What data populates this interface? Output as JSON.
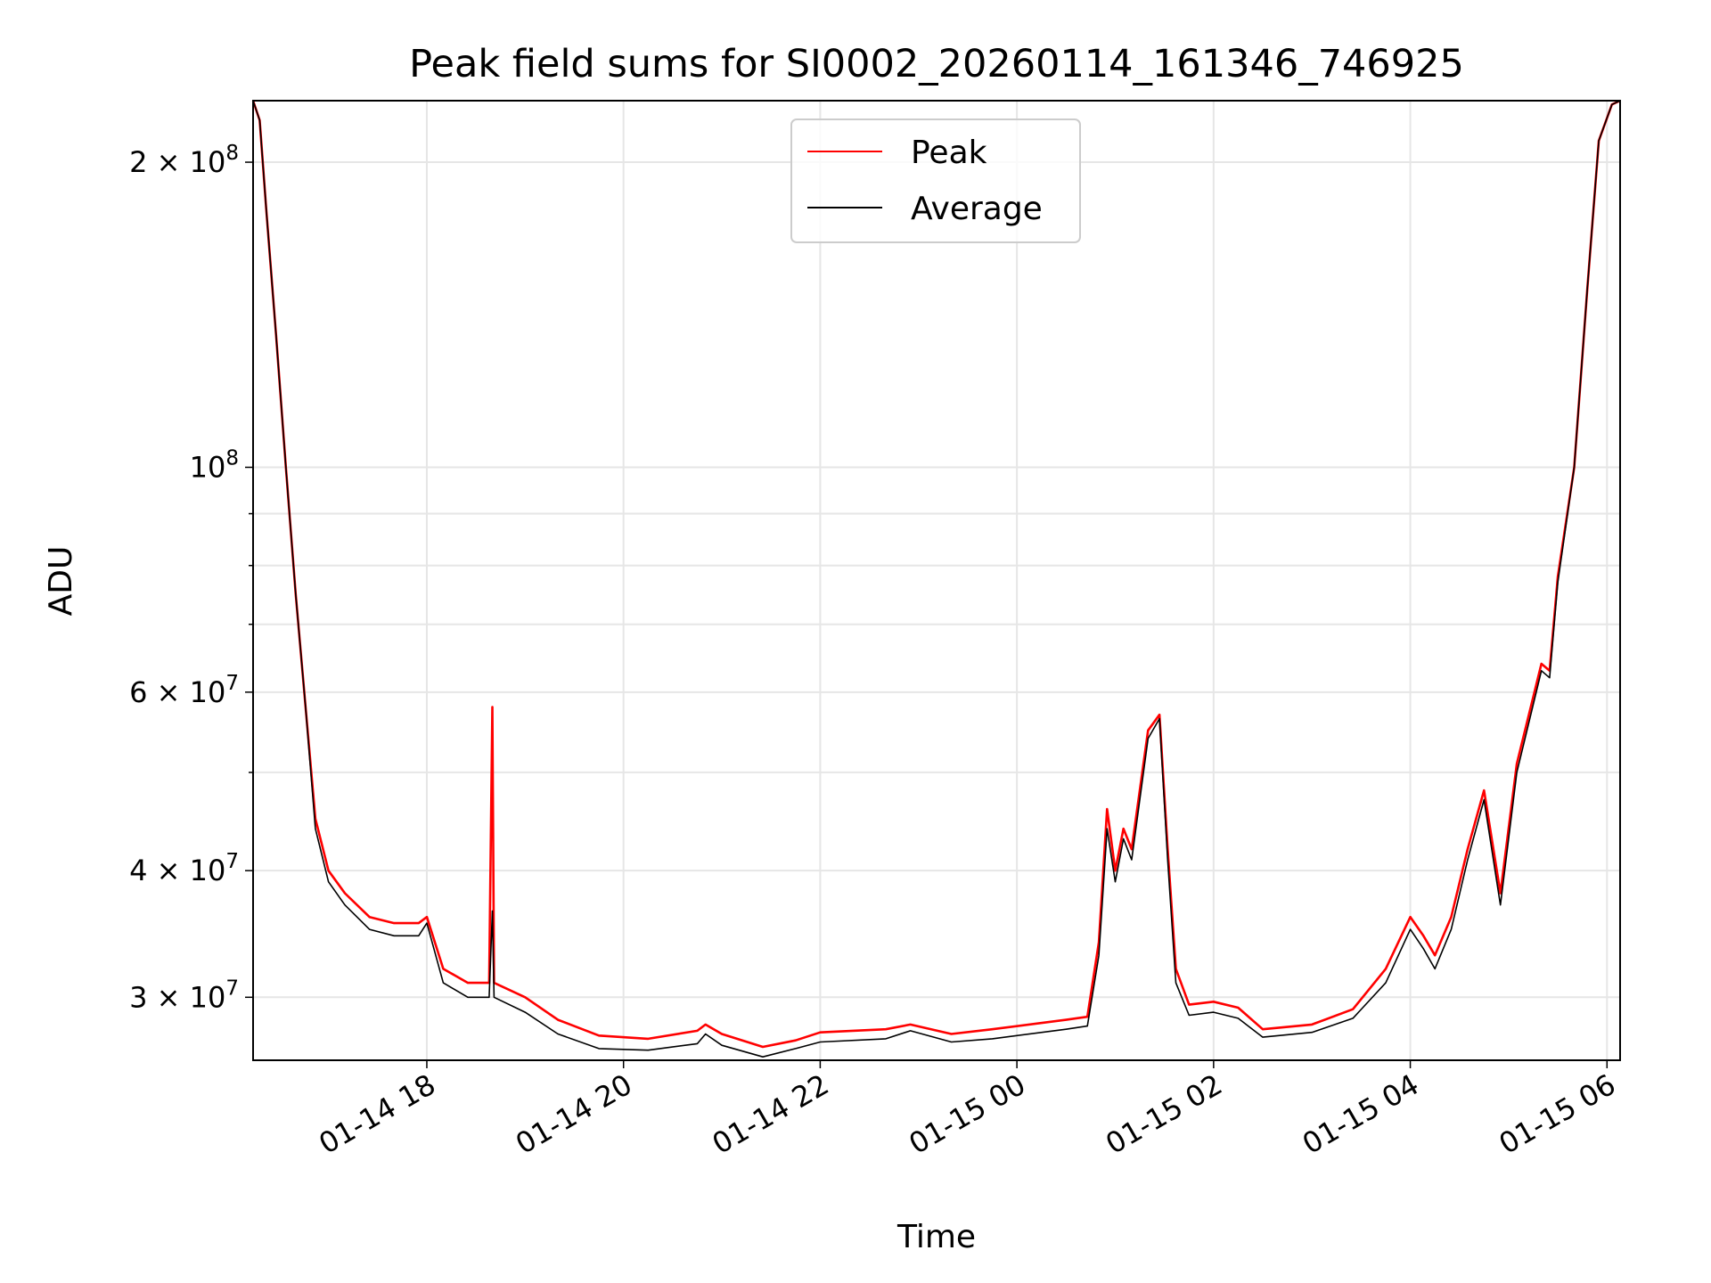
{
  "chart_data": {
    "type": "line",
    "title": "Peak field sums for SI0002_20260114_161346_746925",
    "xlabel": "Time",
    "ylabel": "ADU",
    "yscale": "log",
    "ylim": [
      26000000,
      230000000
    ],
    "xlim": [
      "2026-01-14 16:14",
      "2026-01-15 06:08"
    ],
    "grid": true,
    "legend": "upper center",
    "x_ticks": [
      {
        "value": "2026-01-14 18:00",
        "label": "01-14 18"
      },
      {
        "value": "2026-01-14 20:00",
        "label": "01-14 20"
      },
      {
        "value": "2026-01-14 22:00",
        "label": "01-14 22"
      },
      {
        "value": "2026-01-15 00:00",
        "label": "01-15 00"
      },
      {
        "value": "2026-01-15 02:00",
        "label": "01-15 02"
      },
      {
        "value": "2026-01-15 04:00",
        "label": "01-15 04"
      },
      {
        "value": "2026-01-15 06:00",
        "label": "01-15 06"
      }
    ],
    "y_ticks": [
      {
        "value": 200000000,
        "base": "2 × 10",
        "exp": "8"
      },
      {
        "value": 100000000,
        "base": "10",
        "exp": "8"
      },
      {
        "value": 60000000,
        "base": "6 × 10",
        "exp": "7"
      },
      {
        "value": 40000000,
        "base": "4 × 10",
        "exp": "7"
      },
      {
        "value": 30000000,
        "base": "3 × 10",
        "exp": "7"
      }
    ],
    "y_minor_ticks": [
      90000000,
      80000000,
      70000000,
      50000000
    ],
    "series": [
      {
        "name": "Peak",
        "color": "#ff0000",
        "points": [
          [
            "2026-01-14 16:14",
            230000000
          ],
          [
            "2026-01-14 16:18",
            220000000
          ],
          [
            "2026-01-14 16:22",
            180000000
          ],
          [
            "2026-01-14 16:28",
            135000000
          ],
          [
            "2026-01-14 16:34",
            100000000
          ],
          [
            "2026-01-14 16:40",
            75000000
          ],
          [
            "2026-01-14 16:46",
            58000000
          ],
          [
            "2026-01-14 16:52",
            45000000
          ],
          [
            "2026-01-14 17:00",
            40000000
          ],
          [
            "2026-01-14 17:10",
            38000000
          ],
          [
            "2026-01-14 17:25",
            36000000
          ],
          [
            "2026-01-14 17:40",
            35500000
          ],
          [
            "2026-01-14 17:55",
            35500000
          ],
          [
            "2026-01-14 18:00",
            36000000
          ],
          [
            "2026-01-14 18:10",
            32000000
          ],
          [
            "2026-01-14 18:25",
            31000000
          ],
          [
            "2026-01-14 18:38",
            31000000
          ],
          [
            "2026-01-14 18:40",
            58000000
          ],
          [
            "2026-01-14 18:41",
            31000000
          ],
          [
            "2026-01-14 19:00",
            30000000
          ],
          [
            "2026-01-14 19:20",
            28500000
          ],
          [
            "2026-01-14 19:45",
            27500000
          ],
          [
            "2026-01-14 20:15",
            27300000
          ],
          [
            "2026-01-14 20:45",
            27800000
          ],
          [
            "2026-01-14 20:50",
            28200000
          ],
          [
            "2026-01-14 21:00",
            27600000
          ],
          [
            "2026-01-14 21:25",
            26800000
          ],
          [
            "2026-01-14 21:45",
            27200000
          ],
          [
            "2026-01-14 22:00",
            27700000
          ],
          [
            "2026-01-14 22:40",
            27900000
          ],
          [
            "2026-01-14 22:55",
            28200000
          ],
          [
            "2026-01-14 23:20",
            27600000
          ],
          [
            "2026-01-14 23:45",
            27900000
          ],
          [
            "2026-01-15 00:30",
            28500000
          ],
          [
            "2026-01-15 00:43",
            28700000
          ],
          [
            "2026-01-15 00:50",
            34000000
          ],
          [
            "2026-01-15 00:55",
            46000000
          ],
          [
            "2026-01-15 01:00",
            40000000
          ],
          [
            "2026-01-15 01:05",
            44000000
          ],
          [
            "2026-01-15 01:10",
            42000000
          ],
          [
            "2026-01-15 01:20",
            55000000
          ],
          [
            "2026-01-15 01:27",
            57000000
          ],
          [
            "2026-01-15 01:32",
            42000000
          ],
          [
            "2026-01-15 01:37",
            32000000
          ],
          [
            "2026-01-15 01:45",
            29500000
          ],
          [
            "2026-01-15 02:00",
            29700000
          ],
          [
            "2026-01-15 02:15",
            29300000
          ],
          [
            "2026-01-15 02:30",
            27900000
          ],
          [
            "2026-01-15 03:00",
            28200000
          ],
          [
            "2026-01-15 03:25",
            29200000
          ],
          [
            "2026-01-15 03:45",
            32000000
          ],
          [
            "2026-01-15 04:00",
            36000000
          ],
          [
            "2026-01-15 04:08",
            34500000
          ],
          [
            "2026-01-15 04:15",
            33000000
          ],
          [
            "2026-01-15 04:25",
            36000000
          ],
          [
            "2026-01-15 04:35",
            42000000
          ],
          [
            "2026-01-15 04:45",
            48000000
          ],
          [
            "2026-01-15 04:55",
            38000000
          ],
          [
            "2026-01-15 05:05",
            51000000
          ],
          [
            "2026-01-15 05:20",
            64000000
          ],
          [
            "2026-01-15 05:25",
            63000000
          ],
          [
            "2026-01-15 05:30",
            78000000
          ],
          [
            "2026-01-15 05:40",
            100000000
          ],
          [
            "2026-01-15 05:48",
            150000000
          ],
          [
            "2026-01-15 05:55",
            210000000
          ],
          [
            "2026-01-15 06:03",
            228000000
          ],
          [
            "2026-01-15 06:08",
            230000000
          ]
        ]
      },
      {
        "name": "Average",
        "color": "#000000",
        "points": [
          [
            "2026-01-14 16:14",
            230000000
          ],
          [
            "2026-01-14 16:18",
            220000000
          ],
          [
            "2026-01-14 16:22",
            180000000
          ],
          [
            "2026-01-14 16:28",
            135000000
          ],
          [
            "2026-01-14 16:34",
            100000000
          ],
          [
            "2026-01-14 16:40",
            75000000
          ],
          [
            "2026-01-14 16:46",
            58000000
          ],
          [
            "2026-01-14 16:52",
            44000000
          ],
          [
            "2026-01-14 17:00",
            39000000
          ],
          [
            "2026-01-14 17:10",
            37000000
          ],
          [
            "2026-01-14 17:25",
            35000000
          ],
          [
            "2026-01-14 17:40",
            34500000
          ],
          [
            "2026-01-14 17:55",
            34500000
          ],
          [
            "2026-01-14 18:00",
            35500000
          ],
          [
            "2026-01-14 18:10",
            31000000
          ],
          [
            "2026-01-14 18:25",
            30000000
          ],
          [
            "2026-01-14 18:38",
            30000000
          ],
          [
            "2026-01-14 18:40",
            36500000
          ],
          [
            "2026-01-14 18:41",
            30000000
          ],
          [
            "2026-01-14 19:00",
            29000000
          ],
          [
            "2026-01-14 19:20",
            27600000
          ],
          [
            "2026-01-14 19:45",
            26700000
          ],
          [
            "2026-01-14 20:15",
            26600000
          ],
          [
            "2026-01-14 20:45",
            27000000
          ],
          [
            "2026-01-14 20:50",
            27600000
          ],
          [
            "2026-01-14 21:00",
            26900000
          ],
          [
            "2026-01-14 21:25",
            26200000
          ],
          [
            "2026-01-14 21:45",
            26700000
          ],
          [
            "2026-01-14 22:00",
            27100000
          ],
          [
            "2026-01-14 22:40",
            27300000
          ],
          [
            "2026-01-14 22:55",
            27800000
          ],
          [
            "2026-01-14 23:20",
            27100000
          ],
          [
            "2026-01-14 23:45",
            27300000
          ],
          [
            "2026-01-15 00:30",
            27900000
          ],
          [
            "2026-01-15 00:43",
            28100000
          ],
          [
            "2026-01-15 00:50",
            33000000
          ],
          [
            "2026-01-15 00:55",
            44000000
          ],
          [
            "2026-01-15 01:00",
            39000000
          ],
          [
            "2026-01-15 01:05",
            43000000
          ],
          [
            "2026-01-15 01:10",
            41000000
          ],
          [
            "2026-01-15 01:20",
            54000000
          ],
          [
            "2026-01-15 01:27",
            56500000
          ],
          [
            "2026-01-15 01:32",
            41000000
          ],
          [
            "2026-01-15 01:37",
            31000000
          ],
          [
            "2026-01-15 01:45",
            28800000
          ],
          [
            "2026-01-15 02:00",
            29000000
          ],
          [
            "2026-01-15 02:15",
            28600000
          ],
          [
            "2026-01-15 02:30",
            27400000
          ],
          [
            "2026-01-15 03:00",
            27700000
          ],
          [
            "2026-01-15 03:25",
            28600000
          ],
          [
            "2026-01-15 03:45",
            31000000
          ],
          [
            "2026-01-15 04:00",
            35000000
          ],
          [
            "2026-01-15 04:08",
            33500000
          ],
          [
            "2026-01-15 04:15",
            32000000
          ],
          [
            "2026-01-15 04:25",
            35000000
          ],
          [
            "2026-01-15 04:35",
            41000000
          ],
          [
            "2026-01-15 04:45",
            47000000
          ],
          [
            "2026-01-15 04:55",
            37000000
          ],
          [
            "2026-01-15 05:05",
            50000000
          ],
          [
            "2026-01-15 05:20",
            63000000
          ],
          [
            "2026-01-15 05:25",
            62000000
          ],
          [
            "2026-01-15 05:30",
            77000000
          ],
          [
            "2026-01-15 05:40",
            100000000
          ],
          [
            "2026-01-15 05:48",
            150000000
          ],
          [
            "2026-01-15 05:55",
            210000000
          ],
          [
            "2026-01-15 06:03",
            228000000
          ],
          [
            "2026-01-15 06:08",
            230000000
          ]
        ]
      }
    ]
  }
}
